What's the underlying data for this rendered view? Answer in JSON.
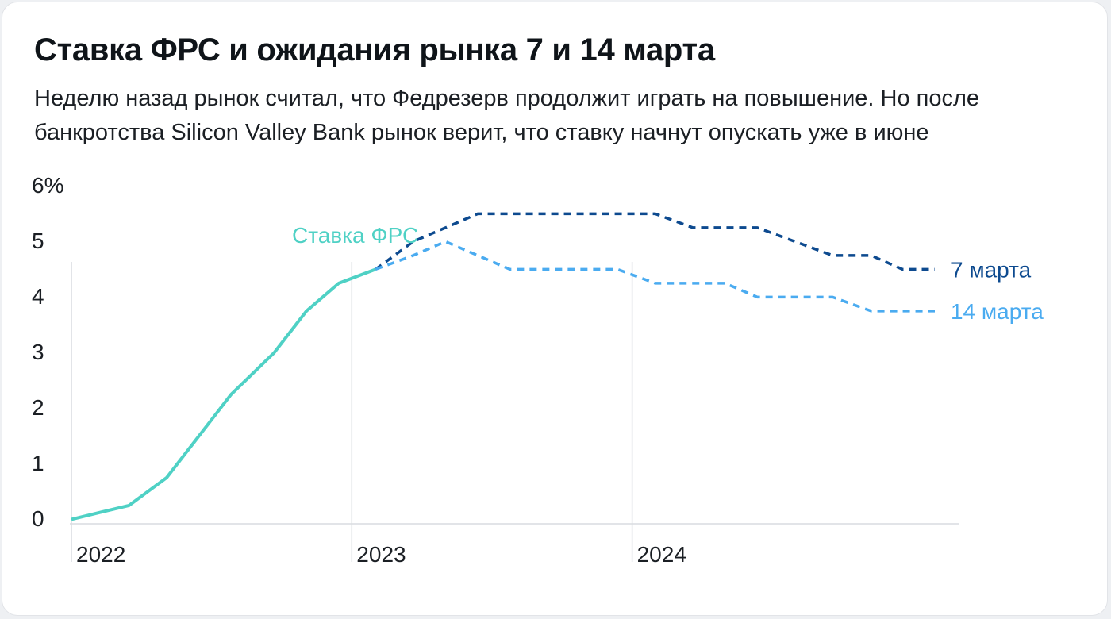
{
  "title": "Ставка ФРС и ожидания рынка 7 и 14 марта",
  "subtitle": "Неделю назад рынок считал, что Федрезерв продолжит играть на повышение. Но после банкротства Silicon Valley Bank рынок верит, что ставку начнут опускать уже в июне",
  "chart_data": {
    "type": "line",
    "x_axis": {
      "type": "date",
      "min": "2022-01-01",
      "max": "2025-03-01",
      "ticks": [
        "2022",
        "2023",
        "2024"
      ],
      "tick_dates": [
        "2022-01-01",
        "2023-01-01",
        "2024-01-01"
      ]
    },
    "y_axis": {
      "min": 0,
      "max": 6,
      "ticks": [
        "0",
        "1",
        "2",
        "3",
        "4",
        "5",
        "6%"
      ],
      "tick_values": [
        0,
        1,
        2,
        3,
        4,
        5,
        6
      ]
    },
    "grid": "vertical lines at year ticks",
    "series": [
      {
        "name": "Ставка ФРС",
        "color": "#4fd1c5",
        "style": "solid",
        "x": [
          "2022-01-01",
          "2022-03-17",
          "2022-05-05",
          "2022-06-16",
          "2022-07-28",
          "2022-09-22",
          "2022-11-03",
          "2022-12-15",
          "2023-02-01"
        ],
        "y": [
          0.08,
          0.33,
          0.83,
          1.58,
          2.33,
          3.08,
          3.83,
          4.33,
          4.58
        ]
      },
      {
        "name": "7 марта",
        "color": "#0d4a8f",
        "style": "dashed",
        "x": [
          "2023-02-01",
          "2023-03-22",
          "2023-05-03",
          "2023-06-14",
          "2023-07-26",
          "2023-09-20",
          "2023-11-01",
          "2023-12-13",
          "2024-01-31",
          "2024-03-20",
          "2024-05-01",
          "2024-06-12",
          "2024-07-31",
          "2024-09-18",
          "2024-11-07",
          "2024-12-18",
          "2025-01-29"
        ],
        "y": [
          4.58,
          5.08,
          5.33,
          5.58,
          5.58,
          5.58,
          5.58,
          5.58,
          5.58,
          5.33,
          5.33,
          5.33,
          5.08,
          4.83,
          4.83,
          4.58,
          4.58
        ]
      },
      {
        "name": "14 марта",
        "color": "#4aabf0",
        "style": "dashed",
        "x": [
          "2023-02-01",
          "2023-03-22",
          "2023-05-03",
          "2023-06-14",
          "2023-07-26",
          "2023-09-20",
          "2023-11-01",
          "2023-12-13",
          "2024-01-31",
          "2024-03-20",
          "2024-05-01",
          "2024-06-12",
          "2024-07-31",
          "2024-09-18",
          "2024-11-07",
          "2024-12-18",
          "2025-01-29"
        ],
        "y": [
          4.58,
          4.83,
          5.08,
          4.83,
          4.58,
          4.58,
          4.58,
          4.58,
          4.33,
          4.33,
          4.33,
          4.08,
          4.08,
          4.08,
          3.83,
          3.83,
          3.83
        ]
      }
    ],
    "annotations": [
      {
        "text": "Ставка ФРС",
        "series": "Ставка ФРС"
      },
      {
        "text": "7 марта",
        "series": "7 марта"
      },
      {
        "text": "14 марта",
        "series": "14 марта"
      }
    ]
  }
}
